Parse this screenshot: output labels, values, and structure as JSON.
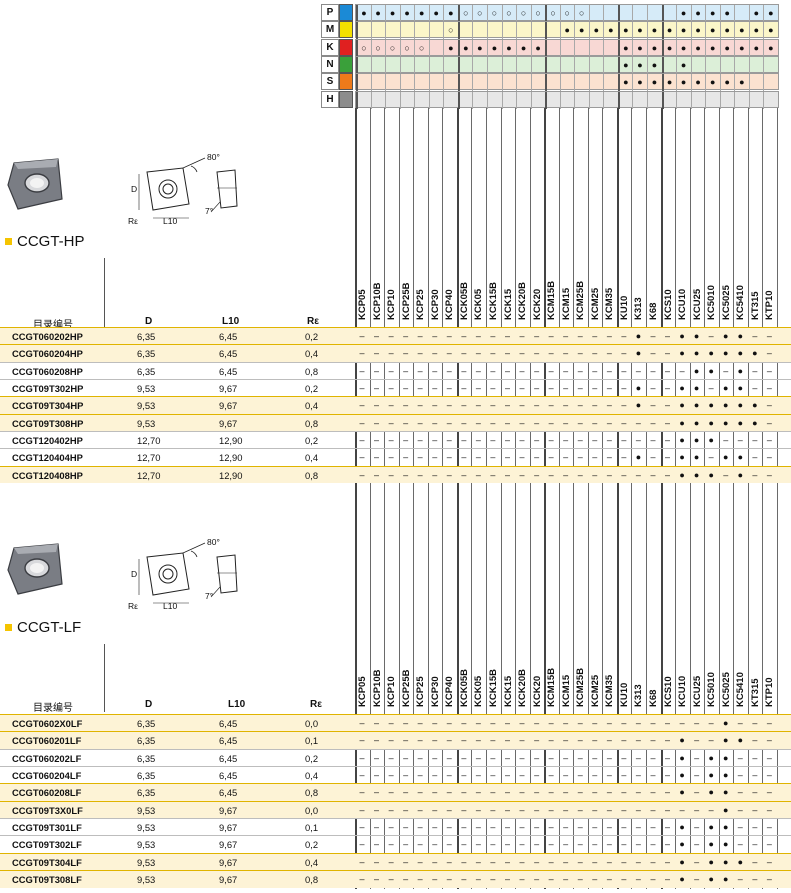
{
  "colors": {
    "P": "#1b8ad6",
    "M": "#f3e000",
    "K": "#e02020",
    "N": "#3aa03a",
    "S": "#ee7a1a",
    "H": "#8c8c8c",
    "band": "#fdf3d6",
    "bandline": "#e0b400"
  },
  "materials": [
    "P",
    "M",
    "K",
    "N",
    "S",
    "H"
  ],
  "grades": [
    "KCP05",
    "KCP10B",
    "KCP10",
    "KCP25B",
    "KCP25",
    "KCP30",
    "KCP40",
    "KCK05B",
    "KCK05",
    "KCK15B",
    "KCK15",
    "KCK20B",
    "KCK20",
    "KCM15B",
    "KCM15",
    "KCM25B",
    "KCM25",
    "KCM35",
    "KU10",
    "K313",
    "K68",
    "KCS10",
    "KCU10",
    "KCU25",
    "KC5010",
    "KC5025",
    "KC5410",
    "KT315",
    "KTP10"
  ],
  "matrix": {
    "P": [
      "●",
      "●",
      "●",
      "●",
      "●",
      "●",
      "●",
      "○",
      "○",
      "○",
      "○",
      "○",
      "○",
      "○",
      "○",
      "○",
      "",
      "",
      "",
      "",
      "",
      "",
      "●",
      "●",
      "●",
      "●",
      "",
      "●",
      "●"
    ],
    "M": [
      "",
      "",
      "",
      "",
      "",
      "",
      "○",
      "",
      "",
      "",
      "",
      "",
      "",
      "",
      "●",
      "●",
      "●",
      "●",
      "●",
      "●",
      "●",
      "●",
      "●",
      "●",
      "●",
      "●",
      "●",
      "●",
      "●"
    ],
    "K": [
      "○",
      "○",
      "○",
      "○",
      "○",
      "",
      "●",
      "●",
      "●",
      "●",
      "●",
      "●",
      "●",
      "",
      "",
      "",
      "",
      "",
      "●",
      "●",
      "●",
      "●",
      "●",
      "●",
      "●",
      "●",
      "●",
      "●",
      "●"
    ],
    "N": [
      "",
      "",
      "",
      "",
      "",
      "",
      "",
      "",
      "",
      "",
      "",
      "",
      "",
      "",
      "",
      "",
      "",
      "",
      "●",
      "●",
      "●",
      "",
      "●",
      "",
      "",
      "",
      "",
      "",
      ""
    ],
    "S": [
      "",
      "",
      "",
      "",
      "",
      "",
      "",
      "",
      "",
      "",
      "",
      "",
      "",
      "",
      "",
      "",
      "",
      "",
      "●",
      "●",
      "●",
      "●",
      "●",
      "●",
      "●",
      "●",
      "●",
      "",
      ""
    ],
    "H": [
      "",
      "",
      "",
      "",
      "",
      "",
      "",
      "",
      "",
      "",
      "",
      "",
      "",
      "",
      "",
      "",
      "",
      "",
      "",
      "",
      "",
      "",
      "",
      "",
      "",
      "",
      "",
      "",
      ""
    ]
  },
  "section_hp": {
    "title": "CCGT-HP",
    "col_catalog": "目录编号",
    "col_d": "D",
    "col_l10": "L10",
    "col_r": "Rε",
    "rows": [
      {
        "id": "CCGT060202HP",
        "d": "6,35",
        "l10": "6,45",
        "r": "0,2",
        "band": true,
        "cells": [
          "–",
          "–",
          "–",
          "–",
          "–",
          "–",
          "–",
          "–",
          "–",
          "–",
          "–",
          "–",
          "–",
          "–",
          "–",
          "–",
          "–",
          "–",
          "–",
          "●",
          "–",
          "–",
          "●",
          "●",
          "–",
          "●",
          "●",
          "–",
          "–"
        ]
      },
      {
        "id": "CCGT060204HP",
        "d": "6,35",
        "l10": "6,45",
        "r": "0,4",
        "band": true,
        "cells": [
          "–",
          "–",
          "–",
          "–",
          "–",
          "–",
          "–",
          "–",
          "–",
          "–",
          "–",
          "–",
          "–",
          "–",
          "–",
          "–",
          "–",
          "–",
          "–",
          "●",
          "–",
          "–",
          "●",
          "●",
          "●",
          "●",
          "●",
          "●",
          "–"
        ]
      },
      {
        "id": "CCGT060208HP",
        "d": "6,35",
        "l10": "6,45",
        "r": "0,8",
        "band": false,
        "cells": [
          "–",
          "–",
          "–",
          "–",
          "–",
          "–",
          "–",
          "–",
          "–",
          "–",
          "–",
          "–",
          "–",
          "–",
          "–",
          "–",
          "–",
          "–",
          "–",
          "–",
          "–",
          "–",
          "–",
          "●",
          "●",
          "–",
          "●",
          "–",
          "–"
        ]
      },
      {
        "id": "CCGT09T302HP",
        "d": "9,53",
        "l10": "9,67",
        "r": "0,2",
        "band": false,
        "cells": [
          "–",
          "–",
          "–",
          "–",
          "–",
          "–",
          "–",
          "–",
          "–",
          "–",
          "–",
          "–",
          "–",
          "–",
          "–",
          "–",
          "–",
          "–",
          "–",
          "●",
          "–",
          "–",
          "●",
          "●",
          "–",
          "●",
          "●",
          "–",
          "–"
        ]
      },
      {
        "id": "CCGT09T304HP",
        "d": "9,53",
        "l10": "9,67",
        "r": "0,4",
        "band": true,
        "cells": [
          "–",
          "–",
          "–",
          "–",
          "–",
          "–",
          "–",
          "–",
          "–",
          "–",
          "–",
          "–",
          "–",
          "–",
          "–",
          "–",
          "–",
          "–",
          "–",
          "●",
          "–",
          "–",
          "●",
          "●",
          "●",
          "●",
          "●",
          "●",
          "–"
        ]
      },
      {
        "id": "CCGT09T308HP",
        "d": "9,53",
        "l10": "9,67",
        "r": "0,8",
        "band": true,
        "cells": [
          "–",
          "–",
          "–",
          "–",
          "–",
          "–",
          "–",
          "–",
          "–",
          "–",
          "–",
          "–",
          "–",
          "–",
          "–",
          "–",
          "–",
          "–",
          "–",
          "–",
          "–",
          "–",
          "●",
          "●",
          "●",
          "●",
          "●",
          "●",
          "–"
        ]
      },
      {
        "id": "CCGT120402HP",
        "d": "12,70",
        "l10": "12,90",
        "r": "0,2",
        "band": false,
        "cells": [
          "–",
          "–",
          "–",
          "–",
          "–",
          "–",
          "–",
          "–",
          "–",
          "–",
          "–",
          "–",
          "–",
          "–",
          "–",
          "–",
          "–",
          "–",
          "–",
          "–",
          "–",
          "–",
          "●",
          "●",
          "●",
          "–",
          "–",
          "–",
          "–"
        ]
      },
      {
        "id": "CCGT120404HP",
        "d": "12,70",
        "l10": "12,90",
        "r": "0,4",
        "band": false,
        "cells": [
          "–",
          "–",
          "–",
          "–",
          "–",
          "–",
          "–",
          "–",
          "–",
          "–",
          "–",
          "–",
          "–",
          "–",
          "–",
          "–",
          "–",
          "–",
          "–",
          "●",
          "–",
          "–",
          "●",
          "●",
          "–",
          "●",
          "●",
          "–",
          "–"
        ]
      },
      {
        "id": "CCGT120408HP",
        "d": "12,70",
        "l10": "12,90",
        "r": "0,8",
        "band": true,
        "cells": [
          "–",
          "–",
          "–",
          "–",
          "–",
          "–",
          "–",
          "–",
          "–",
          "–",
          "–",
          "–",
          "–",
          "–",
          "–",
          "–",
          "–",
          "–",
          "–",
          "–",
          "–",
          "–",
          "●",
          "●",
          "●",
          "–",
          "●",
          "–",
          "–"
        ]
      }
    ]
  },
  "section_lf": {
    "title": "CCGT-LF",
    "col_catalog": "目录编号",
    "col_d": "D",
    "col_l10": "L10",
    "col_r": "Rε",
    "rows": [
      {
        "id": "CCGT0602X0LF",
        "d": "6,35",
        "l10": "6,45",
        "r": "0,0",
        "band": true,
        "cells": [
          "–",
          "–",
          "–",
          "–",
          "–",
          "–",
          "–",
          "–",
          "–",
          "–",
          "–",
          "–",
          "–",
          "–",
          "–",
          "–",
          "–",
          "–",
          "–",
          "–",
          "–",
          "–",
          "–",
          "–",
          "–",
          "●",
          "–",
          "–",
          "–"
        ]
      },
      {
        "id": "CCGT060201LF",
        "d": "6,35",
        "l10": "6,45",
        "r": "0,1",
        "band": true,
        "cells": [
          "–",
          "–",
          "–",
          "–",
          "–",
          "–",
          "–",
          "–",
          "–",
          "–",
          "–",
          "–",
          "–",
          "–",
          "–",
          "–",
          "–",
          "–",
          "–",
          "–",
          "–",
          "–",
          "●",
          "–",
          "–",
          "●",
          "●",
          "–",
          "–"
        ]
      },
      {
        "id": "CCGT060202LF",
        "d": "6,35",
        "l10": "6,45",
        "r": "0,2",
        "band": false,
        "cells": [
          "–",
          "–",
          "–",
          "–",
          "–",
          "–",
          "–",
          "–",
          "–",
          "–",
          "–",
          "–",
          "–",
          "–",
          "–",
          "–",
          "–",
          "–",
          "–",
          "–",
          "–",
          "–",
          "●",
          "–",
          "●",
          "●",
          "–",
          "–",
          "–"
        ]
      },
      {
        "id": "CCGT060204LF",
        "d": "6,35",
        "l10": "6,45",
        "r": "0,4",
        "band": false,
        "cells": [
          "–",
          "–",
          "–",
          "–",
          "–",
          "–",
          "–",
          "–",
          "–",
          "–",
          "–",
          "–",
          "–",
          "–",
          "–",
          "–",
          "–",
          "–",
          "–",
          "–",
          "–",
          "–",
          "●",
          "–",
          "●",
          "●",
          "–",
          "–",
          "–"
        ]
      },
      {
        "id": "CCGT060208LF",
        "d": "6,35",
        "l10": "6,45",
        "r": "0,8",
        "band": true,
        "cells": [
          "–",
          "–",
          "–",
          "–",
          "–",
          "–",
          "–",
          "–",
          "–",
          "–",
          "–",
          "–",
          "–",
          "–",
          "–",
          "–",
          "–",
          "–",
          "–",
          "–",
          "–",
          "–",
          "●",
          "–",
          "●",
          "●",
          "–",
          "–",
          "–"
        ]
      },
      {
        "id": "CCGT09T3X0LF",
        "d": "9,53",
        "l10": "9,67",
        "r": "0,0",
        "band": true,
        "cells": [
          "–",
          "–",
          "–",
          "–",
          "–",
          "–",
          "–",
          "–",
          "–",
          "–",
          "–",
          "–",
          "–",
          "–",
          "–",
          "–",
          "–",
          "–",
          "–",
          "–",
          "–",
          "–",
          "–",
          "–",
          "–",
          "●",
          "–",
          "–",
          "–"
        ]
      },
      {
        "id": "CCGT09T301LF",
        "d": "9,53",
        "l10": "9,67",
        "r": "0,1",
        "band": false,
        "cells": [
          "–",
          "–",
          "–",
          "–",
          "–",
          "–",
          "–",
          "–",
          "–",
          "–",
          "–",
          "–",
          "–",
          "–",
          "–",
          "–",
          "–",
          "–",
          "–",
          "–",
          "–",
          "–",
          "●",
          "–",
          "●",
          "●",
          "–",
          "–",
          "–"
        ]
      },
      {
        "id": "CCGT09T302LF",
        "d": "9,53",
        "l10": "9,67",
        "r": "0,2",
        "band": false,
        "cells": [
          "–",
          "–",
          "–",
          "–",
          "–",
          "–",
          "–",
          "–",
          "–",
          "–",
          "–",
          "–",
          "–",
          "–",
          "–",
          "–",
          "–",
          "–",
          "–",
          "–",
          "–",
          "–",
          "●",
          "–",
          "●",
          "●",
          "–",
          "–",
          "–"
        ]
      },
      {
        "id": "CCGT09T304LF",
        "d": "9,53",
        "l10": "9,67",
        "r": "0,4",
        "band": true,
        "cells": [
          "–",
          "–",
          "–",
          "–",
          "–",
          "–",
          "–",
          "–",
          "–",
          "–",
          "–",
          "–",
          "–",
          "–",
          "–",
          "–",
          "–",
          "–",
          "–",
          "–",
          "–",
          "–",
          "●",
          "–",
          "●",
          "●",
          "●",
          "–",
          "–"
        ]
      },
      {
        "id": "CCGT09T308LF",
        "d": "9,53",
        "l10": "9,67",
        "r": "0,8",
        "band": true,
        "cells": [
          "–",
          "–",
          "–",
          "–",
          "–",
          "–",
          "–",
          "–",
          "–",
          "–",
          "–",
          "–",
          "–",
          "–",
          "–",
          "–",
          "–",
          "–",
          "–",
          "–",
          "–",
          "–",
          "●",
          "–",
          "●",
          "●",
          "–",
          "–",
          "–"
        ]
      }
    ]
  },
  "diagram": {
    "angle_top": "80°",
    "angle_side": "7°",
    "label_d": "D",
    "label_l10": "L10",
    "label_r": "Rε"
  }
}
